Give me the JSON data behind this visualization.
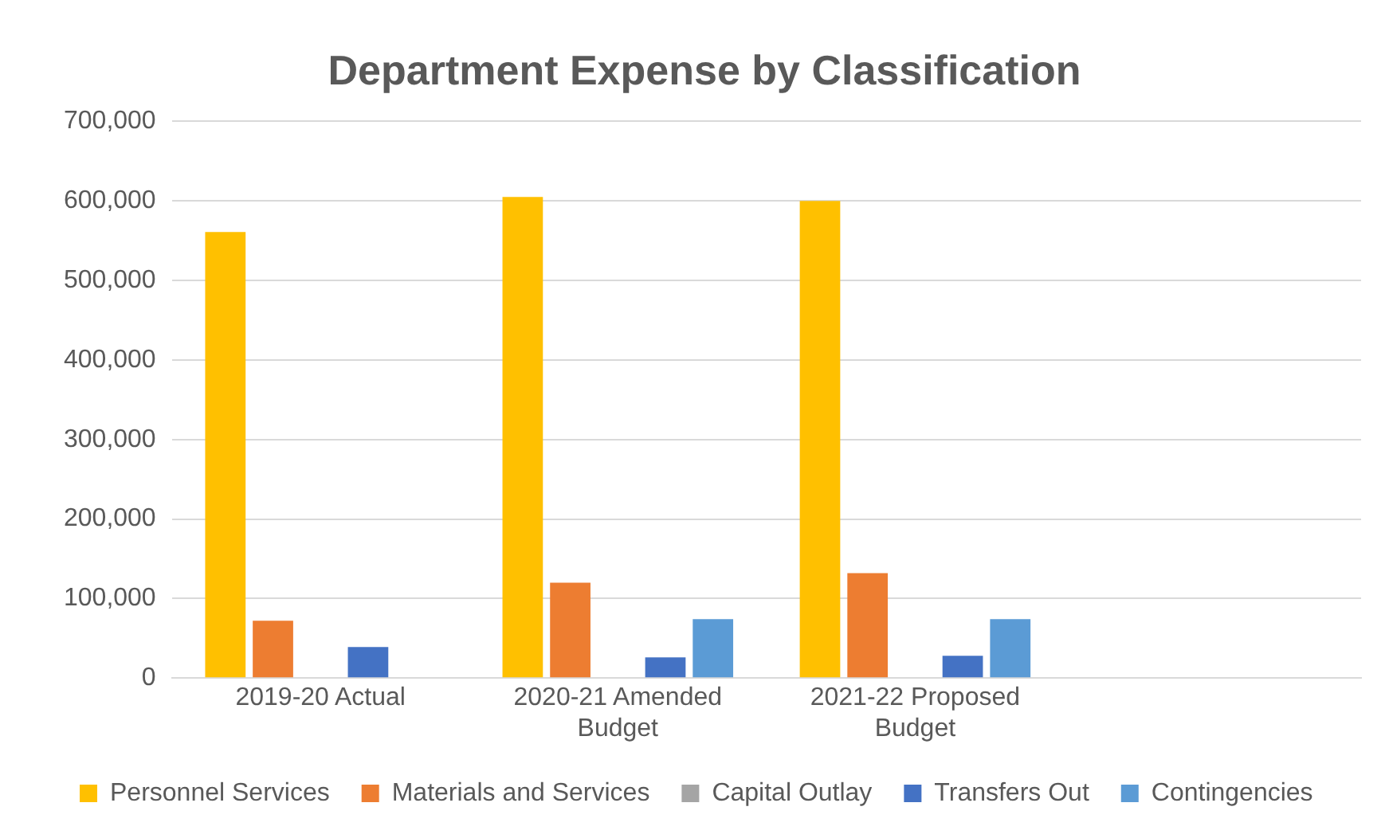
{
  "chart_data": {
    "type": "bar",
    "title": "Department Expense by Classification",
    "categories": [
      "2019-20 Actual",
      "2020-21 Amended Budget",
      "2021-22 Proposed Budget",
      null
    ],
    "series": [
      {
        "name": "Personnel Services",
        "color": "#ffc000",
        "values": [
          561000,
          605000,
          600000,
          null
        ]
      },
      {
        "name": "Materials and Services",
        "color": "#ed7d31",
        "values": [
          72000,
          120000,
          132000,
          null
        ]
      },
      {
        "name": "Capital Outlay",
        "color": "#a5a5a5",
        "values": [
          0,
          1000,
          1000,
          null
        ]
      },
      {
        "name": "Transfers Out",
        "color": "#4472c4",
        "values": [
          39000,
          26000,
          28000,
          null
        ]
      },
      {
        "name": "Contingencies",
        "color": "#5b9bd5",
        "values": [
          0,
          74000,
          74000,
          null
        ]
      }
    ],
    "ylim": [
      0,
      700000
    ],
    "yticks": [
      0,
      {
        "value": 100000,
        "label": "100,000"
      },
      {
        "value": 200000,
        "label": "200,000"
      },
      {
        "value": 300000,
        "label": "300,000"
      },
      {
        "value": 400000,
        "label": "400,000"
      },
      {
        "value": 500000,
        "label": "500,000"
      },
      {
        "value": 600000,
        "label": "600,000"
      },
      {
        "value": 700000,
        "label": "700,000"
      }
    ],
    "grid": "y",
    "legend": "bottom"
  }
}
